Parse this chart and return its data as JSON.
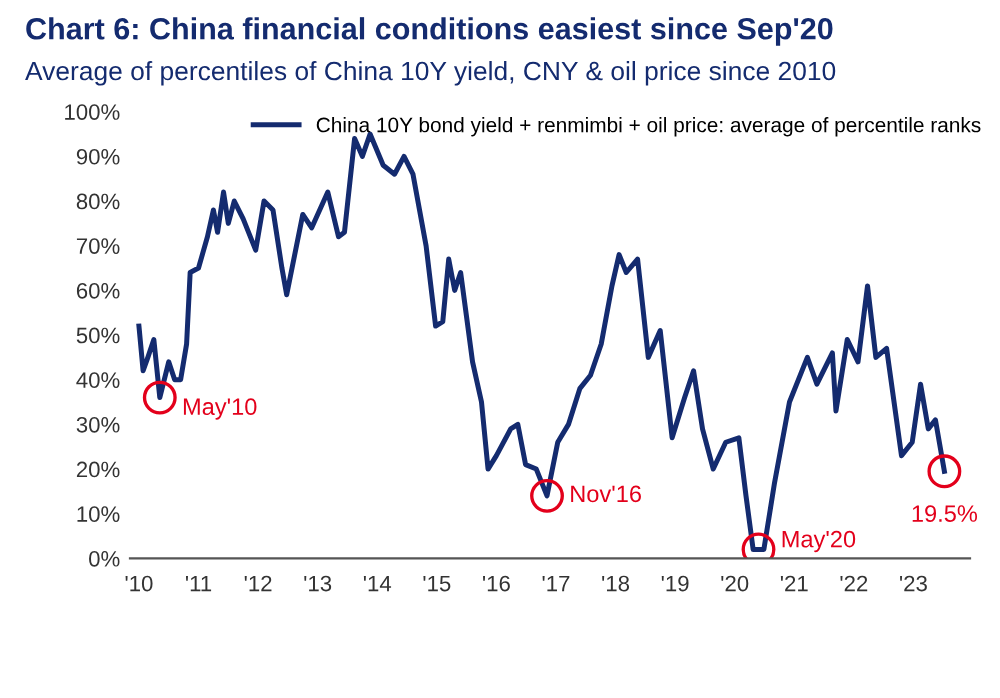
{
  "chart_data": {
    "type": "line",
    "title": "Chart 6: China financial conditions easiest since Sep'20",
    "subtitle": "Average of percentiles of China 10Y yield, CNY & oil price since 2010",
    "x": [
      2010.0,
      2010.07,
      2010.15,
      2010.25,
      2010.35,
      2010.5,
      2010.6,
      2010.7,
      2010.8,
      2010.86,
      2011.0,
      2011.15,
      2011.25,
      2011.32,
      2011.42,
      2011.5,
      2011.6,
      2011.75,
      2011.96,
      2012.1,
      2012.25,
      2012.4,
      2012.48,
      2012.75,
      2012.9,
      2013.17,
      2013.35,
      2013.45,
      2013.62,
      2013.75,
      2013.88,
      2014.1,
      2014.29,
      2014.45,
      2014.6,
      2014.82,
      2014.98,
      2015.1,
      2015.2,
      2015.3,
      2015.4,
      2015.5,
      2015.6,
      2015.75,
      2015.86,
      2016.0,
      2016.24,
      2016.36,
      2016.49,
      2016.67,
      2016.85,
      2017.03,
      2017.21,
      2017.4,
      2017.58,
      2017.76,
      2017.94,
      2018.06,
      2018.18,
      2018.37,
      2018.55,
      2018.75,
      2018.95,
      2019.16,
      2019.31,
      2019.46,
      2019.64,
      2019.85,
      2020.07,
      2020.19,
      2020.31,
      2020.49,
      2020.67,
      2020.92,
      2021.22,
      2021.38,
      2021.64,
      2021.7,
      2021.89,
      2022.07,
      2022.23,
      2022.37,
      2022.55,
      2022.8,
      2022.98,
      2023.12,
      2023.25,
      2023.37,
      2023.52
    ],
    "series": [
      {
        "name": "China 10Y bond yield + renmimbi + oil price: average of percentile ranks",
        "color": "#142b6f",
        "values": [
          52,
          42,
          45,
          49,
          36,
          44,
          40,
          40,
          48,
          64,
          65,
          72,
          78,
          73,
          82,
          75,
          80,
          76,
          69,
          80,
          78,
          65,
          59,
          77,
          74,
          82,
          72,
          73,
          94,
          90,
          95,
          88,
          86,
          90,
          86,
          70,
          52,
          53,
          67,
          60,
          64,
          54,
          44,
          35,
          20,
          23,
          29,
          30,
          21,
          20,
          14,
          26,
          30,
          38,
          41,
          48,
          61,
          68,
          64,
          67,
          45,
          51,
          27,
          36,
          42,
          29,
          20,
          26,
          27,
          14,
          2,
          2,
          17,
          35,
          45,
          39,
          46,
          33,
          49,
          44,
          61,
          45,
          47,
          23,
          26,
          39,
          29,
          31,
          19.5
        ]
      }
    ],
    "xlim": [
      2009.85,
      2023.95
    ],
    "xticks": [
      {
        "value": 2010,
        "label": "'10"
      },
      {
        "value": 2011,
        "label": "'11"
      },
      {
        "value": 2012,
        "label": "'12"
      },
      {
        "value": 2013,
        "label": "'13"
      },
      {
        "value": 2014,
        "label": "'14"
      },
      {
        "value": 2015,
        "label": "'15"
      },
      {
        "value": 2016,
        "label": "'16"
      },
      {
        "value": 2017,
        "label": "'17"
      },
      {
        "value": 2018,
        "label": "'18"
      },
      {
        "value": 2019,
        "label": "'19"
      },
      {
        "value": 2020,
        "label": "'20"
      },
      {
        "value": 2021,
        "label": "'21"
      },
      {
        "value": 2022,
        "label": "'22"
      },
      {
        "value": 2023,
        "label": "'23"
      }
    ],
    "ylim": [
      0,
      100
    ],
    "yticks": [
      {
        "value": 0,
        "label": "0%"
      },
      {
        "value": 10,
        "label": "10%"
      },
      {
        "value": 20,
        "label": "20%"
      },
      {
        "value": 30,
        "label": "30%"
      },
      {
        "value": 40,
        "label": "40%"
      },
      {
        "value": 50,
        "label": "50%"
      },
      {
        "value": 60,
        "label": "60%"
      },
      {
        "value": 70,
        "label": "70%"
      },
      {
        "value": 80,
        "label": "80%"
      },
      {
        "value": 90,
        "label": "90%"
      },
      {
        "value": 100,
        "label": "100%"
      }
    ],
    "annotations": [
      {
        "text": "May'10",
        "x": 2010.35,
        "y": 36
      },
      {
        "text": "Nov'16",
        "x": 2016.85,
        "y": 14
      },
      {
        "text": "May'20",
        "x": 2020.4,
        "y": 2
      },
      {
        "text": "19.5%",
        "x": 2023.52,
        "y": 19.5
      }
    ],
    "legend": "top",
    "grid": false,
    "line_style": "solid",
    "marker": "none"
  }
}
